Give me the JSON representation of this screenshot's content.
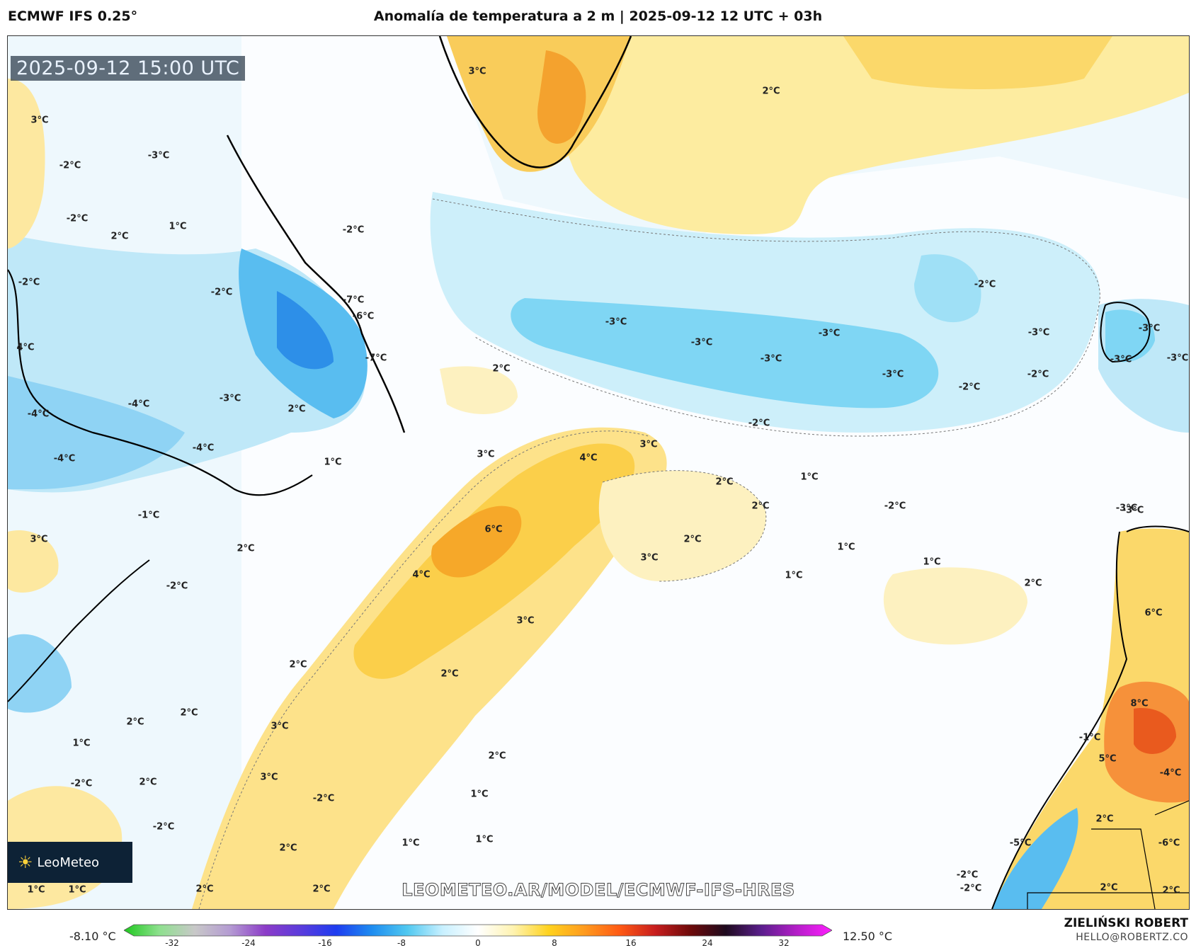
{
  "header": {
    "model": "ECMWF IFS 0.25°",
    "title": "Anomalía de temperatura a 2 m | 2025-09-12 12 UTC + 03h"
  },
  "map": {
    "valid_time": "2025-09-12 15:00 UTC",
    "watermark_url": "LEOMETEO.AR/MODEL/ECMWF-IFS-HRES",
    "logo_text": "LeoMeteo",
    "labels": [
      {
        "text": "-2°C"
      },
      {
        "text": "-7°C"
      },
      {
        "text": "3°C"
      },
      {
        "text": "2°C"
      },
      {
        "text": "3°C"
      },
      {
        "text": "-3°C"
      },
      {
        "text": "-2°C"
      },
      {
        "text": "1°C"
      },
      {
        "text": "2°C"
      },
      {
        "text": "-2°C"
      },
      {
        "text": "-2°C"
      },
      {
        "text": "4°C"
      },
      {
        "text": "-6°C"
      },
      {
        "text": "-7°C"
      },
      {
        "text": "-2°C"
      },
      {
        "text": "-3°C"
      },
      {
        "text": "-3°C"
      },
      {
        "text": "-3°C"
      },
      {
        "text": "-3°C"
      },
      {
        "text": "-3°C"
      },
      {
        "text": "-2°C"
      },
      {
        "text": "-3°C"
      },
      {
        "text": "-3°C"
      },
      {
        "text": "-2°C"
      },
      {
        "text": "-3°C"
      },
      {
        "text": "2°C"
      },
      {
        "text": "-4°C"
      },
      {
        "text": "-4°C"
      },
      {
        "text": "-3°C"
      },
      {
        "text": "-3°C"
      },
      {
        "text": "2°C"
      },
      {
        "text": "-4°C"
      },
      {
        "text": "-4°C"
      },
      {
        "text": "1°C"
      },
      {
        "text": "-2°C"
      },
      {
        "text": "3°C"
      },
      {
        "text": "3°C"
      },
      {
        "text": "4°C"
      },
      {
        "text": "2°C"
      },
      {
        "text": "1°C"
      },
      {
        "text": "2°C"
      },
      {
        "text": "-2°C"
      },
      {
        "text": "-1°C"
      },
      {
        "text": "3°C"
      },
      {
        "text": "2°C"
      },
      {
        "text": "6°C"
      },
      {
        "text": "2°C"
      },
      {
        "text": "3°C"
      },
      {
        "text": "1°C"
      },
      {
        "text": "1°C"
      },
      {
        "text": "1°C"
      },
      {
        "text": "-2°C"
      },
      {
        "text": "4°C"
      },
      {
        "text": "2°C"
      },
      {
        "text": "-3°C"
      },
      {
        "text": "3°C"
      },
      {
        "text": "6°C"
      },
      {
        "text": "2°C"
      },
      {
        "text": "2°C"
      },
      {
        "text": "2°C"
      },
      {
        "text": "2°C"
      },
      {
        "text": "1°C"
      },
      {
        "text": "3°C"
      },
      {
        "text": "2°C"
      },
      {
        "text": "8°C"
      },
      {
        "text": "3°C"
      },
      {
        "text": "-1°C"
      },
      {
        "text": "-2°C"
      },
      {
        "text": "2°C"
      },
      {
        "text": "5°C"
      },
      {
        "text": "-4°C"
      },
      {
        "text": "-2°C"
      },
      {
        "text": "-2°C"
      },
      {
        "text": "1°C"
      },
      {
        "text": "1°C"
      },
      {
        "text": "1°C"
      },
      {
        "text": "2°C"
      },
      {
        "text": "-6°C"
      },
      {
        "text": "2°C"
      },
      {
        "text": "-2°C"
      },
      {
        "text": "-2°C"
      },
      {
        "text": "-5°C"
      },
      {
        "text": "2°C"
      },
      {
        "text": "2°C"
      },
      {
        "text": "1°C"
      },
      {
        "text": "1°C"
      },
      {
        "text": "2°C"
      },
      {
        "text": "2°C"
      },
      {
        "text": "-2°C"
      },
      {
        "text": "-3°C"
      }
    ]
  },
  "colorbar": {
    "min_label": "-8.10 °C",
    "max_label": "12.50 °C",
    "ticks": [
      "-32",
      "-24",
      "-16",
      "-8",
      "0",
      "8",
      "16",
      "24",
      "32"
    ],
    "tick_values": [
      -32,
      -24,
      -16,
      -8,
      0,
      8,
      16,
      24,
      32
    ],
    "range": [
      -36,
      36
    ],
    "colors": [
      "#1ec81e",
      "#8ee08e",
      "#c8c8c8",
      "#b49bd2",
      "#8c3cc8",
      "#5a3cdc",
      "#1e3cf0",
      "#1e8cf0",
      "#50c8f0",
      "#c8f0ff",
      "#ffffff",
      "#fff3b0",
      "#ffd21e",
      "#ff9b1e",
      "#ff5a14",
      "#c81e1e",
      "#6e0a0a",
      "#1e0a1e",
      "#5a1e8c",
      "#b41ec8",
      "#ff1eff"
    ]
  },
  "footer": {
    "author": "ZIELIŃSKI ROBERT",
    "email": "HELLO@ROBERTZ.CO"
  }
}
